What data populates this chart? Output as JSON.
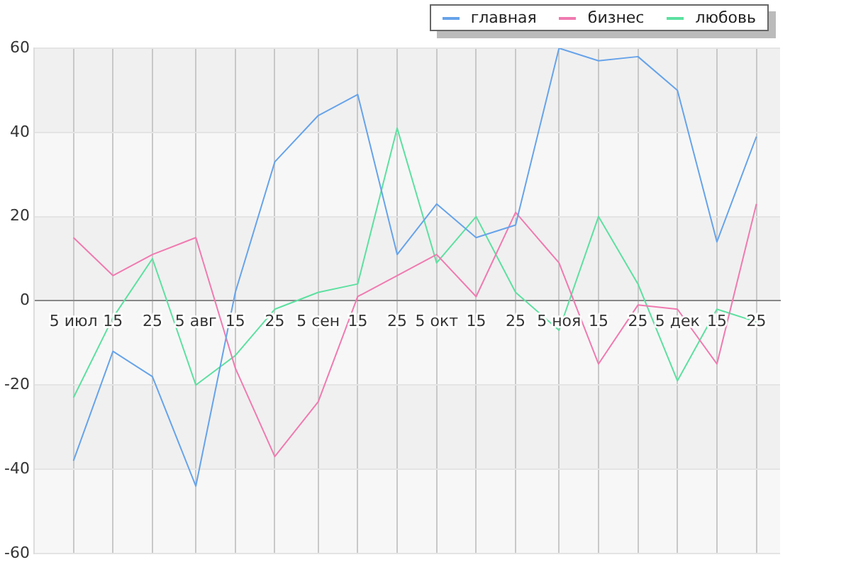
{
  "chart_data": {
    "type": "line",
    "x": [
      "--07-05",
      "--07-15",
      "--07-25",
      "--08-05",
      "--08-15",
      "--08-25",
      "--09-05",
      "--09-15",
      "--09-25",
      "--10-05",
      "--10-15",
      "--10-25",
      "--11-05",
      "--11-15",
      "--11-25",
      "--12-05",
      "--12-15",
      "--12-25"
    ],
    "series": [
      {
        "name": "главная",
        "color": "#66a3ea",
        "values": [
          -38,
          -12,
          -18,
          -44,
          2,
          33,
          44,
          49,
          11,
          23,
          15,
          18,
          60,
          57,
          58,
          50,
          14,
          39
        ]
      },
      {
        "name": "бизнес",
        "color": "#f07ab0",
        "values": [
          15,
          6,
          11,
          15,
          -16,
          -37,
          -24,
          1,
          6,
          11,
          1,
          21,
          9,
          -15,
          -1,
          -2,
          -15,
          23
        ]
      },
      {
        "name": "любовь",
        "color": "#5ce0a0",
        "values": [
          -23,
          -4,
          10,
          -20,
          -13,
          -2,
          2,
          4,
          41,
          9,
          20,
          2,
          -7,
          20,
          4,
          -19,
          -2,
          -5
        ]
      }
    ],
    "xlim": [
      "--06-25",
      "--12-31"
    ],
    "xticks": [
      {
        "value": "--07-05",
        "label": "5 июл"
      },
      {
        "value": "--07-15",
        "label": "15"
      },
      {
        "value": "--07-25",
        "label": "25"
      },
      {
        "value": "--08-05",
        "label": "5 авг"
      },
      {
        "value": "--08-15",
        "label": "15"
      },
      {
        "value": "--08-25",
        "label": "25"
      },
      {
        "value": "--09-05",
        "label": "5 сен"
      },
      {
        "value": "--09-15",
        "label": "15"
      },
      {
        "value": "--09-25",
        "label": "25"
      },
      {
        "value": "--10-05",
        "label": "5 окт"
      },
      {
        "value": "--10-15",
        "label": "15"
      },
      {
        "value": "--10-25",
        "label": "25"
      },
      {
        "value": "--11-05",
        "label": "5 ноя"
      },
      {
        "value": "--11-15",
        "label": "15"
      },
      {
        "value": "--11-25",
        "label": "25"
      },
      {
        "value": "--12-05",
        "label": "5 дек"
      },
      {
        "value": "--12-15",
        "label": "15"
      },
      {
        "value": "--12-25",
        "label": "25"
      }
    ],
    "ylim": [
      -60,
      60
    ],
    "yticks": [
      -60,
      -40,
      -20,
      0,
      20,
      40,
      60
    ],
    "grid": true,
    "legend": "top right",
    "marker": "none",
    "line_style": "solid"
  }
}
